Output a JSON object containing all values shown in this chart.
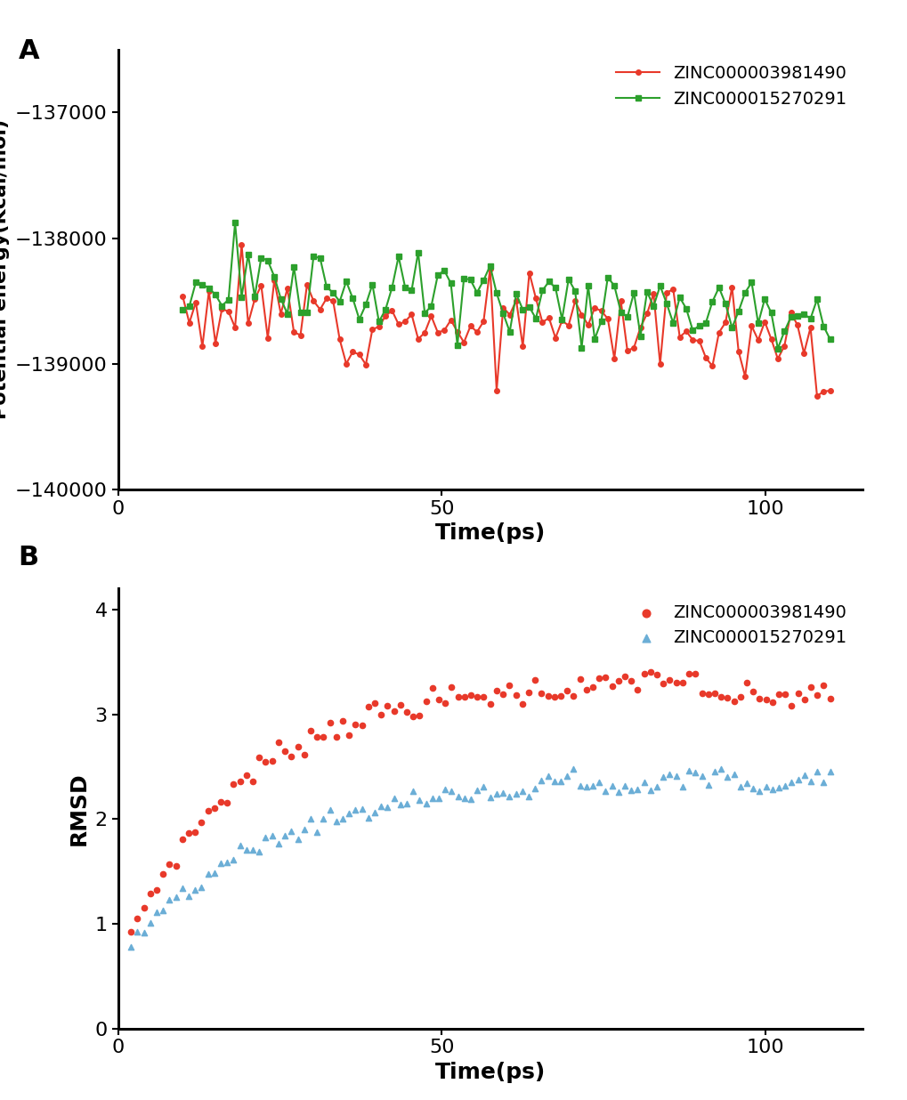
{
  "panel_A": {
    "title_label": "A",
    "xlabel": "Time(ps)",
    "ylabel": "Potential energy(Kcal/mol)",
    "xlim": [
      0,
      115
    ],
    "ylim": [
      -140000,
      -136500
    ],
    "yticks": [
      -140000,
      -139000,
      -138000,
      -137000
    ],
    "xticks": [
      0,
      50,
      100
    ],
    "legend1": "ZINC000003981490",
    "legend2": "ZINC000015270291",
    "color1": "#e8392a",
    "color2": "#2ca02c",
    "marker1": "o",
    "marker2": "s"
  },
  "panel_B": {
    "title_label": "B",
    "xlabel": "Time(ps)",
    "ylabel": "RMSD",
    "xlim": [
      0,
      115
    ],
    "ylim": [
      0,
      4.2
    ],
    "yticks": [
      0,
      1,
      2,
      3,
      4
    ],
    "xticks": [
      0,
      50,
      100
    ],
    "legend1": "ZINC000003981490",
    "legend2": "ZINC000015270291",
    "color1": "#e8392a",
    "color2": "#6baed6",
    "marker1": "o",
    "marker2": "^"
  },
  "bg_color": "#ffffff",
  "spine_color": "#000000",
  "tick_color": "#000000",
  "label_fontsize": 18,
  "tick_fontsize": 16,
  "legend_fontsize": 14,
  "panel_label_fontsize": 22,
  "linewidth": 1.5,
  "markersize_A": 4,
  "markersize_B": 4.5
}
